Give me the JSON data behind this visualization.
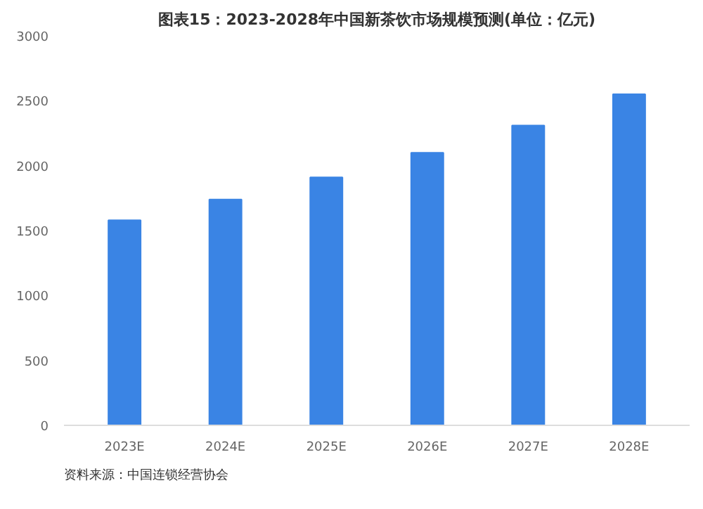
{
  "chart_data": {
    "type": "bar",
    "title": "图表15：2023-2028年中国新茶饮市场规模预测(单位：亿元)",
    "categories": [
      "2023E",
      "2024E",
      "2025E",
      "2026E",
      "2027E",
      "2028E"
    ],
    "values": [
      1580,
      1740,
      1910,
      2100,
      2310,
      2550
    ],
    "color": "#3a84e4",
    "ylim": [
      0,
      3000
    ],
    "yticks": [
      0,
      500,
      1000,
      1500,
      2000,
      2500,
      3000
    ],
    "grid": false,
    "annotations": [
      "资料来源：中国连锁经营协会"
    ]
  }
}
